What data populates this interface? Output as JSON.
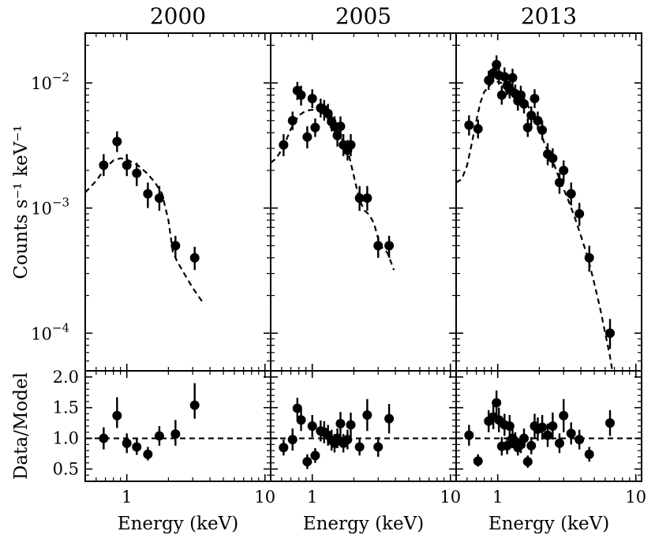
{
  "chart_data": {
    "type": "scatter",
    "panel_titles": [
      "2000",
      "2005",
      "2013"
    ],
    "xlabel": "Energy (keV)",
    "ylabel_top": "Counts s⁻¹ keV⁻¹",
    "ylabel_bottom": "Data/Model",
    "xscale": "log",
    "xlim": [
      0.5,
      11
    ],
    "xticks": [
      1,
      10
    ],
    "xtick_labels": [
      "1",
      "10"
    ],
    "top_yscale": "log",
    "top_ylim": [
      5e-05,
      0.025
    ],
    "top_yticks": [
      0.0001,
      0.001,
      0.01
    ],
    "top_ytick_labels": [
      {
        "base": "10",
        "exp": "−4"
      },
      {
        "base": "10",
        "exp": "−3"
      },
      {
        "base": "10",
        "exp": "−2"
      }
    ],
    "bottom_ylim": [
      0.3,
      2.1
    ],
    "bottom_yticks": [
      0.5,
      1.0,
      1.5,
      2.0
    ],
    "bottom_ytick_labels": [
      "0.5",
      "1.0",
      "1.5",
      "2.0"
    ],
    "reference_line": 1.0,
    "panels": [
      {
        "title": "2000",
        "data": {
          "x": [
            0.68,
            0.85,
            1.0,
            1.18,
            1.42,
            1.72,
            2.25,
            3.1
          ],
          "y": [
            0.0022,
            0.0034,
            0.0022,
            0.0019,
            0.0013,
            0.0012,
            0.0005,
            0.0004
          ],
          "ylo": [
            0.0018,
            0.0028,
            0.0018,
            0.0015,
            0.001,
            0.00095,
            0.0004,
            0.00032
          ],
          "yhi": [
            0.0027,
            0.0041,
            0.0027,
            0.0023,
            0.0016,
            0.0015,
            0.0006,
            0.00049
          ]
        },
        "model": {
          "x": [
            0.5,
            0.6,
            0.7,
            0.8,
            0.9,
            1.0,
            1.2,
            1.4,
            1.6,
            1.8,
            2.0,
            2.15,
            2.3,
            2.6,
            3.0,
            3.5
          ],
          "y": [
            0.00133,
            0.00165,
            0.0021,
            0.0024,
            0.0025,
            0.00245,
            0.0022,
            0.0019,
            0.0016,
            0.0013,
            0.0008,
            0.00045,
            0.00038,
            0.0003,
            0.00023,
            0.00018
          ]
        },
        "ratio": {
          "x": [
            0.68,
            0.85,
            1.0,
            1.18,
            1.42,
            1.72,
            2.25,
            3.1
          ],
          "y": [
            1.0,
            1.37,
            0.92,
            0.86,
            0.74,
            1.04,
            1.07,
            1.54
          ],
          "ylo": [
            0.82,
            1.17,
            0.76,
            0.73,
            0.64,
            0.88,
            0.88,
            1.32
          ],
          "yhi": [
            1.18,
            1.67,
            1.08,
            1.0,
            0.86,
            1.2,
            1.3,
            1.9
          ]
        }
      },
      {
        "title": "2005",
        "data": {
          "x": [
            0.62,
            0.72,
            0.78,
            0.83,
            0.92,
            1.0,
            1.05,
            1.15,
            1.22,
            1.3,
            1.38,
            1.45,
            1.52,
            1.6,
            1.68,
            1.8,
            1.9,
            2.2,
            2.5,
            3.0,
            3.6
          ],
          "y": [
            0.0032,
            0.005,
            0.0087,
            0.008,
            0.0037,
            0.0075,
            0.0044,
            0.0063,
            0.0061,
            0.0057,
            0.0049,
            0.0045,
            0.0038,
            0.0045,
            0.0032,
            0.0029,
            0.0032,
            0.0012,
            0.0012,
            0.0005,
            0.0005
          ],
          "ylo": [
            0.0026,
            0.0042,
            0.0073,
            0.0066,
            0.003,
            0.0063,
            0.0037,
            0.0053,
            0.005,
            0.0047,
            0.0041,
            0.0037,
            0.0031,
            0.0037,
            0.0026,
            0.0024,
            0.0026,
            0.00095,
            0.00095,
            0.0004,
            0.0004
          ],
          "yhi": [
            0.0039,
            0.0059,
            0.0102,
            0.0095,
            0.0045,
            0.0089,
            0.0052,
            0.0075,
            0.0073,
            0.0068,
            0.0058,
            0.0054,
            0.0046,
            0.0054,
            0.0039,
            0.0035,
            0.0039,
            0.0015,
            0.0015,
            0.0006,
            0.0006
          ]
        },
        "model": {
          "x": [
            0.5,
            0.55,
            0.62,
            0.7,
            0.8,
            0.9,
            1.0,
            1.1,
            1.25,
            1.4,
            1.55,
            1.7,
            1.85,
            2.0,
            2.2,
            2.4,
            2.6,
            2.8,
            3.1,
            3.5,
            3.9
          ],
          "y": [
            0.0023,
            0.0025,
            0.0031,
            0.0043,
            0.0055,
            0.006,
            0.0061,
            0.006,
            0.0055,
            0.0047,
            0.004,
            0.0033,
            0.0026,
            0.0018,
            0.00115,
            0.00095,
            0.00088,
            0.00075,
            0.0005,
            0.00044,
            0.00032
          ]
        },
        "ratio": {
          "x": [
            0.62,
            0.72,
            0.78,
            0.83,
            0.92,
            1.0,
            1.05,
            1.15,
            1.22,
            1.3,
            1.38,
            1.45,
            1.52,
            1.6,
            1.68,
            1.8,
            1.9,
            2.2,
            2.5,
            3.0,
            3.6
          ],
          "y": [
            0.85,
            0.98,
            1.49,
            1.3,
            0.62,
            1.2,
            0.72,
            1.12,
            1.1,
            1.05,
            0.97,
            0.92,
            1.0,
            1.24,
            0.92,
            0.98,
            1.22,
            0.86,
            1.38,
            0.86,
            1.32
          ],
          "ylo": [
            0.72,
            0.8,
            1.32,
            1.12,
            0.5,
            1.02,
            0.6,
            0.95,
            0.92,
            0.88,
            0.8,
            0.77,
            0.84,
            1.05,
            0.77,
            0.82,
            1.02,
            0.72,
            1.12,
            0.7,
            1.08
          ],
          "yhi": [
            0.98,
            1.16,
            1.66,
            1.48,
            0.74,
            1.38,
            0.84,
            1.29,
            1.28,
            1.22,
            1.14,
            1.07,
            1.16,
            1.43,
            1.07,
            1.14,
            1.42,
            1.0,
            1.64,
            1.02,
            1.56
          ]
        }
      },
      {
        "title": "2013",
        "data": {
          "x": [
            0.62,
            0.72,
            0.86,
            0.93,
            0.98,
            1.02,
            1.07,
            1.12,
            1.17,
            1.22,
            1.28,
            1.34,
            1.4,
            1.47,
            1.55,
            1.65,
            1.75,
            1.85,
            1.95,
            2.1,
            2.3,
            2.5,
            2.8,
            3.0,
            3.4,
            3.9,
            4.6,
            6.5
          ],
          "y": [
            0.0046,
            0.0043,
            0.0105,
            0.012,
            0.014,
            0.0115,
            0.008,
            0.0112,
            0.0095,
            0.0089,
            0.011,
            0.0082,
            0.0072,
            0.008,
            0.0068,
            0.0044,
            0.0055,
            0.0075,
            0.005,
            0.0042,
            0.0027,
            0.0025,
            0.0016,
            0.002,
            0.0013,
            0.0009,
            0.0004,
            0.0001
          ],
          "ylo": [
            0.0038,
            0.0036,
            0.0088,
            0.0101,
            0.0118,
            0.0097,
            0.0067,
            0.0094,
            0.008,
            0.0075,
            0.0093,
            0.0069,
            0.006,
            0.0067,
            0.0057,
            0.0037,
            0.0046,
            0.0063,
            0.0042,
            0.0035,
            0.0022,
            0.0021,
            0.0013,
            0.0016,
            0.00105,
            0.00072,
            0.00031,
            7.5e-05
          ],
          "yhi": [
            0.0055,
            0.0051,
            0.0125,
            0.0142,
            0.0166,
            0.0137,
            0.0095,
            0.0133,
            0.0113,
            0.0106,
            0.013,
            0.0097,
            0.0086,
            0.0095,
            0.0081,
            0.0052,
            0.0065,
            0.0089,
            0.0059,
            0.005,
            0.0033,
            0.003,
            0.0019,
            0.0024,
            0.0016,
            0.0011,
            0.0005,
            0.00013
          ]
        },
        "model": {
          "x": [
            0.5,
            0.55,
            0.6,
            0.65,
            0.7,
            0.75,
            0.8,
            0.9,
            1.0,
            1.1,
            1.2,
            1.35,
            1.5,
            1.65,
            1.8,
            2.0,
            2.2,
            2.5,
            2.8,
            3.2,
            3.6,
            4.0,
            4.5,
            5.0,
            5.5,
            6.0,
            6.5,
            6.8
          ],
          "y": [
            0.0016,
            0.0017,
            0.0022,
            0.0033,
            0.005,
            0.007,
            0.0085,
            0.0099,
            0.0102,
            0.0099,
            0.0095,
            0.0086,
            0.0076,
            0.0066,
            0.0056,
            0.0043,
            0.0032,
            0.0024,
            0.0017,
            0.0012,
            0.00085,
            0.0006,
            0.0004,
            0.00025,
            0.00016,
            0.0001,
            6.5e-05,
            4.8e-05
          ]
        },
        "ratio": {
          "x": [
            0.62,
            0.72,
            0.86,
            0.93,
            0.98,
            1.02,
            1.07,
            1.12,
            1.17,
            1.22,
            1.28,
            1.34,
            1.4,
            1.47,
            1.55,
            1.65,
            1.75,
            1.85,
            1.95,
            2.1,
            2.3,
            2.5,
            2.8,
            3.0,
            3.4,
            3.9,
            4.6,
            6.5
          ],
          "y": [
            1.05,
            0.63,
            1.28,
            1.35,
            1.58,
            1.3,
            0.87,
            1.22,
            0.88,
            1.2,
            1.0,
            0.95,
            0.85,
            0.9,
            1.0,
            0.62,
            0.88,
            1.2,
            1.15,
            1.18,
            1.05,
            1.2,
            0.92,
            1.37,
            1.08,
            0.98,
            0.74,
            1.25
          ],
          "ylo": [
            0.88,
            0.54,
            1.1,
            1.15,
            1.38,
            1.1,
            0.72,
            1.04,
            0.74,
            1.02,
            0.84,
            0.8,
            0.72,
            0.76,
            0.84,
            0.52,
            0.74,
            1.0,
            0.96,
            0.98,
            0.86,
            0.98,
            0.76,
            1.1,
            0.9,
            0.82,
            0.62,
            1.04
          ],
          "yhi": [
            1.22,
            0.74,
            1.46,
            1.55,
            1.78,
            1.5,
            1.02,
            1.4,
            1.02,
            1.38,
            1.16,
            1.1,
            0.98,
            1.04,
            1.16,
            0.72,
            1.02,
            1.4,
            1.34,
            1.38,
            1.24,
            1.42,
            1.08,
            1.64,
            1.26,
            1.14,
            0.86,
            1.46
          ]
        }
      }
    ]
  }
}
